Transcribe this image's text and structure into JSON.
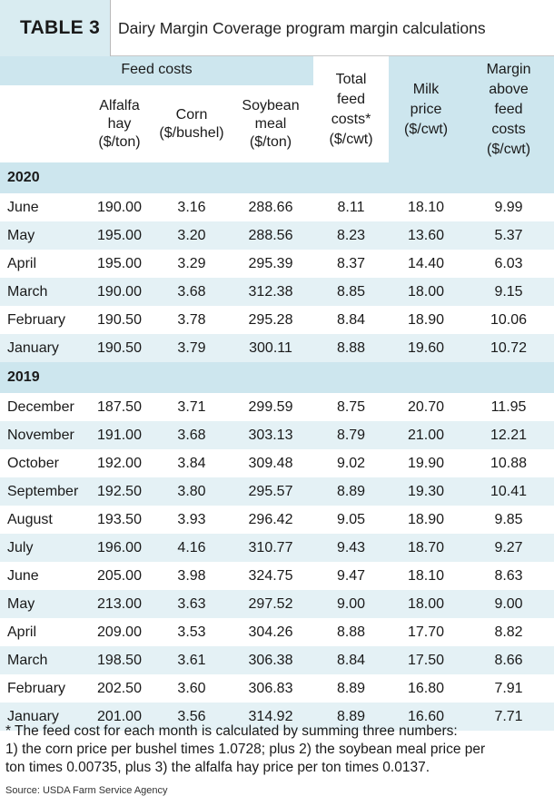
{
  "title": {
    "number": "TABLE 3",
    "text": "Dairy Margin Coverage program margin calculations"
  },
  "headers": {
    "group": "Feed costs",
    "alfalfa": [
      "Alfalfa",
      "hay",
      "($/ton)"
    ],
    "corn": [
      "Corn",
      "($/bushel)"
    ],
    "soybean": [
      "Soybean",
      "meal",
      "($/ton)"
    ],
    "total": [
      "Total",
      "feed",
      "costs*",
      "($/cwt)"
    ],
    "milk": [
      "Milk",
      "price",
      "($/cwt)"
    ],
    "margin": [
      "Margin",
      "above",
      "feed",
      "costs",
      "($/cwt)"
    ]
  },
  "sections": [
    {
      "year": "2020",
      "rows": [
        [
          "June",
          "190.00",
          "3.16",
          "288.66",
          "8.11",
          "18.10",
          "9.99"
        ],
        [
          "May",
          "195.00",
          "3.20",
          "288.56",
          "8.23",
          "13.60",
          "5.37"
        ],
        [
          "April",
          "195.00",
          "3.29",
          "295.39",
          "8.37",
          "14.40",
          "6.03"
        ],
        [
          "March",
          "190.00",
          "3.68",
          "312.38",
          "8.85",
          "18.00",
          "9.15"
        ],
        [
          "February",
          "190.50",
          "3.78",
          "295.28",
          "8.84",
          "18.90",
          "10.06"
        ],
        [
          "January",
          "190.50",
          "3.79",
          "300.11",
          "8.88",
          "19.60",
          "10.72"
        ]
      ]
    },
    {
      "year": "2019",
      "rows": [
        [
          "December",
          "187.50",
          "3.71",
          "299.59",
          "8.75",
          "20.70",
          "11.95"
        ],
        [
          "November",
          "191.00",
          "3.68",
          "303.13",
          "8.79",
          "21.00",
          "12.21"
        ],
        [
          "October",
          "192.00",
          "3.84",
          "309.48",
          "9.02",
          "19.90",
          "10.88"
        ],
        [
          "September",
          "192.50",
          "3.80",
          "295.57",
          "8.89",
          "19.30",
          "10.41"
        ],
        [
          "August",
          "193.50",
          "3.93",
          "296.42",
          "9.05",
          "18.90",
          "9.85"
        ],
        [
          "July",
          "196.00",
          "4.16",
          "310.77",
          "9.43",
          "18.70",
          "9.27"
        ],
        [
          "June",
          "205.00",
          "3.98",
          "324.75",
          "9.47",
          "18.10",
          "8.63"
        ],
        [
          "May",
          "213.00",
          "3.63",
          "297.52",
          "9.00",
          "18.00",
          "9.00"
        ],
        [
          "April",
          "209.00",
          "3.53",
          "304.26",
          "8.88",
          "17.70",
          "8.82"
        ],
        [
          "March",
          "198.50",
          "3.61",
          "306.38",
          "8.84",
          "17.50",
          "8.66"
        ],
        [
          "February",
          "202.50",
          "3.60",
          "306.83",
          "8.89",
          "16.80",
          "7.91"
        ],
        [
          "January",
          "201.00",
          "3.56",
          "314.92",
          "8.89",
          "16.60",
          "7.71"
        ]
      ]
    }
  ],
  "footnote": [
    "* The feed cost for each month is calculated by summing three numbers:",
    "1) the corn price per bushel times 1.0728; plus 2) the soybean meal price per",
    "ton times 0.00735, plus 3) the alfalfa hay price per ton times 0.0137."
  ],
  "source": "Source: USDA Farm Service Agency"
}
